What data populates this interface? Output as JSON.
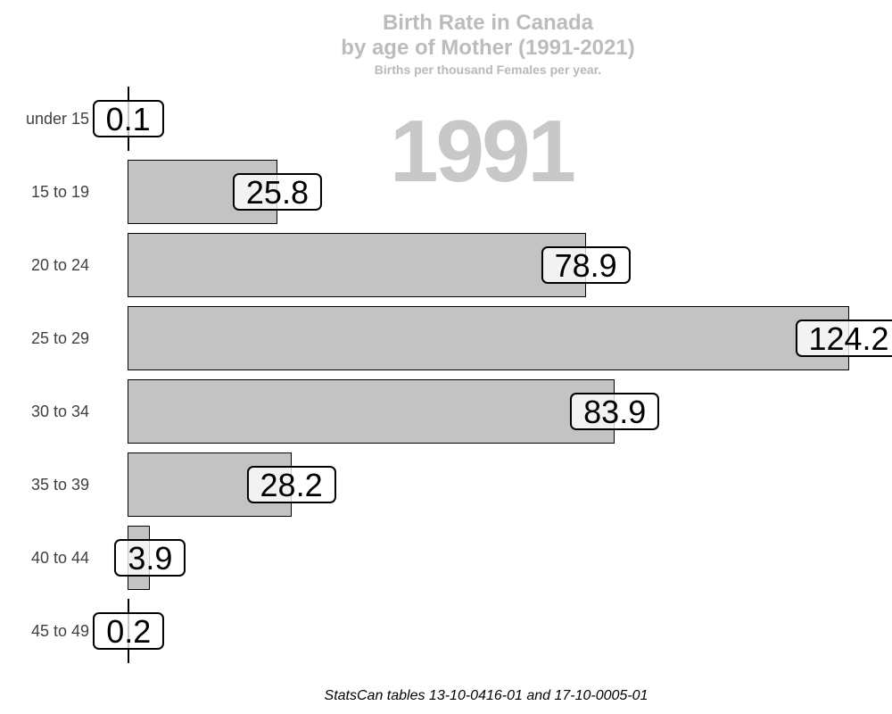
{
  "title": {
    "line1": "Birth Rate in Canada",
    "line2": "by age of Mother (1991-2021)",
    "subtitle": "Births per thousand Females per year."
  },
  "watermark_year": "1991",
  "caption": "StatsCan tables 13-10-0416-01 and 17-10-0005-01",
  "colors": {
    "bar_fill": "#c3c3c3",
    "bar_border": "#000000",
    "title_gray": "#bcbcbc",
    "watermark_gray": "#c8c8c8",
    "axis_text_gray": "#404040",
    "value_box_bg": "rgba(255,255,255,0.78)",
    "value_box_border": "#000000"
  },
  "chart_data": {
    "type": "bar",
    "orientation": "horizontal",
    "title": "Birth Rate in Canada by age of Mother (1991-2021)",
    "subtitle": "Births per thousand Females per year.",
    "frame_year": "1991",
    "categories": [
      "under 15",
      "15 to 19",
      "20 to 24",
      "25 to 29",
      "30 to 34",
      "35 to 39",
      "40 to 44",
      "45 to 49"
    ],
    "values": [
      0.1,
      25.8,
      78.9,
      124.2,
      83.9,
      28.2,
      3.9,
      0.2
    ],
    "value_labels": [
      "0.1",
      "25.8",
      "78.9",
      "124.2",
      "83.9",
      "28.2",
      "3.9",
      "0.2"
    ],
    "xlabel": "",
    "ylabel": "",
    "xlim": [
      0,
      130
    ],
    "grid": false,
    "legend": false,
    "bar_label_style": "boxed, centered on bar end"
  }
}
